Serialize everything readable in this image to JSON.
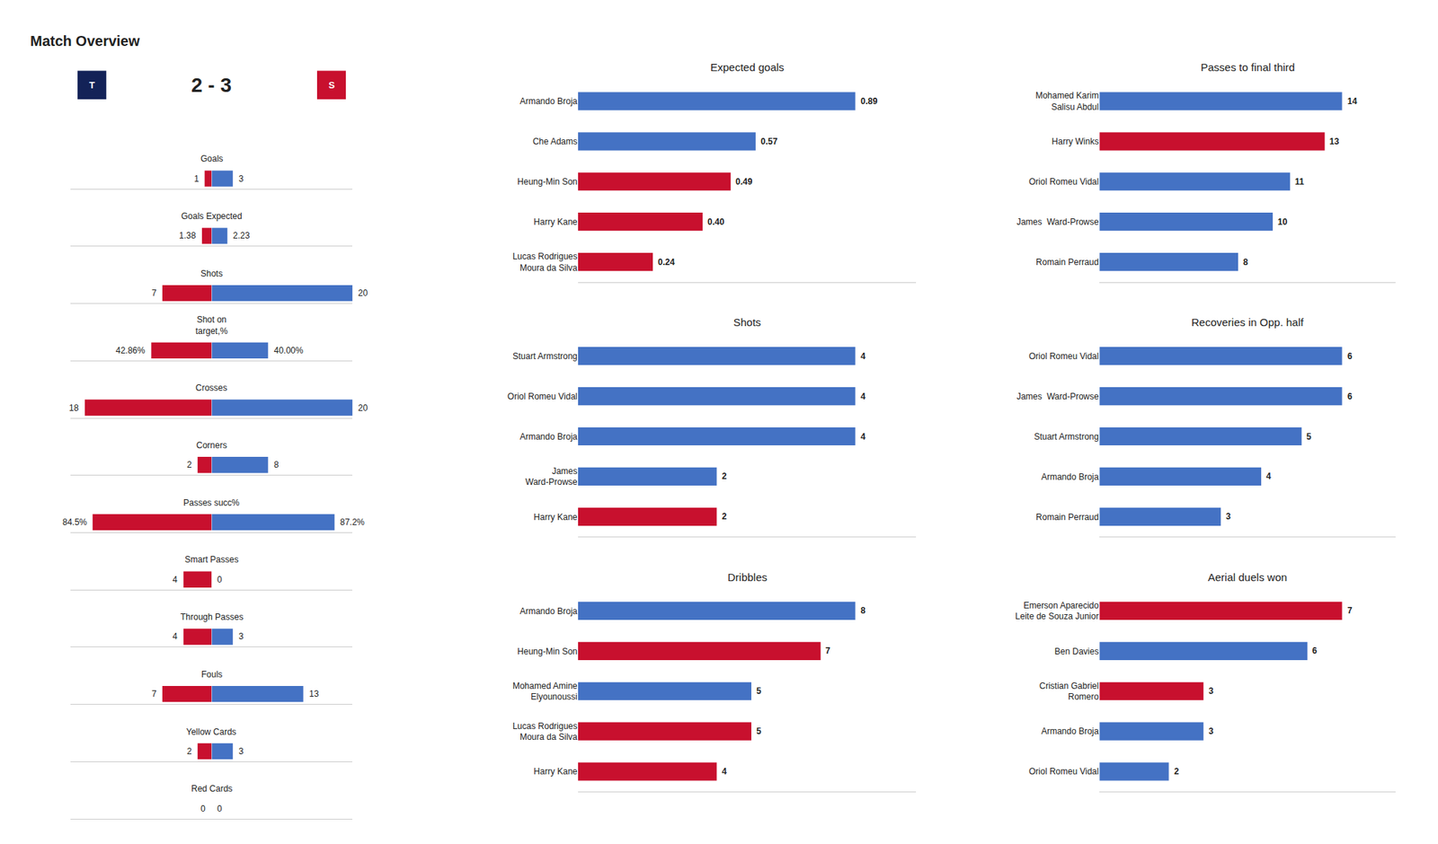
{
  "chart_data": [
    {
      "type": "bar",
      "orientation": "horizontal",
      "title": "Match Overview",
      "subtitle": "2 - 3",
      "annotations": [
        {
          "text": "T",
          "color": "#132257"
        },
        {
          "text": "S",
          "color": "#C8102E"
        }
      ],
      "categories": [
        "Goals",
        "Goals Expected",
        "Shots",
        "Shot on\ntarget,%",
        "Crosses",
        "Corners",
        "Passes succ%",
        "Smart Passes",
        "Through Passes",
        "Fouls",
        "Yellow Cards",
        "Red Cards"
      ],
      "scale": [
        20,
        20,
        20,
        100,
        20,
        20,
        100,
        20,
        20,
        20,
        20,
        20
      ],
      "series": [
        {
          "color": "#C8102E",
          "values": [
            1,
            1.38,
            7,
            42.86,
            18,
            2,
            84.5,
            4,
            4,
            7,
            2,
            0
          ],
          "value_labels": [
            "1",
            "1.38",
            "7",
            "42.86%",
            "18",
            "2",
            "84.5%",
            "4",
            "4",
            "7",
            "2",
            "0"
          ]
        },
        {
          "color": "#4472C4",
          "values": [
            3,
            2.23,
            20,
            40.0,
            20,
            8,
            87.2,
            0,
            3,
            13,
            3,
            0
          ],
          "value_labels": [
            "3",
            "2.23",
            "20",
            "40.00%",
            "20",
            "8",
            "87.2%",
            "0",
            "3",
            "13",
            "3",
            "0"
          ]
        }
      ],
      "data_labels": true,
      "tick_labels": "y",
      "grid": false
    },
    {
      "type": "bar",
      "orientation": "horizontal",
      "title": "Expected goals",
      "categories": [
        "Armando Broja",
        "Che Adams",
        "Heung-Min Son",
        "Harry Kane",
        "Lucas Rodrigues\nMoura da Silva"
      ],
      "values": [
        0.89,
        0.57,
        0.49,
        0.4,
        0.24
      ],
      "value_labels": [
        "0.89",
        "0.57",
        "0.49",
        "0.40",
        "0.24"
      ],
      "colors": [
        "#4472C4",
        "#4472C4",
        "#C8102E",
        "#C8102E",
        "#C8102E"
      ],
      "xlim": [
        0,
        1.0858
      ],
      "data_labels": true,
      "tick_labels": "y",
      "grid": false
    },
    {
      "type": "bar",
      "orientation": "horizontal",
      "title": "Shots",
      "categories": [
        "Stuart Armstrong",
        "Oriol Romeu Vidal",
        "Armando Broja",
        "James\nWard-Prowse",
        "Harry Kane"
      ],
      "values": [
        4,
        4,
        4,
        2,
        2
      ],
      "value_labels": [
        "4",
        "4",
        "4",
        "2",
        "2"
      ],
      "colors": [
        "#4472C4",
        "#4472C4",
        "#4472C4",
        "#4472C4",
        "#C8102E"
      ],
      "xlim": [
        0,
        4.88
      ],
      "data_labels": true,
      "tick_labels": "y",
      "grid": false
    },
    {
      "type": "bar",
      "orientation": "horizontal",
      "title": "Dribbles",
      "categories": [
        "Armando Broja",
        "Heung-Min Son",
        "Mohamed Amine\nElyounoussi",
        "Lucas Rodrigues\nMoura da Silva",
        "Harry Kane"
      ],
      "values": [
        8,
        7,
        5,
        5,
        4
      ],
      "value_labels": [
        "8",
        "7",
        "5",
        "5",
        "4"
      ],
      "colors": [
        "#4472C4",
        "#C8102E",
        "#4472C4",
        "#C8102E",
        "#C8102E"
      ],
      "xlim": [
        0,
        9.76
      ],
      "data_labels": true,
      "tick_labels": "y",
      "grid": false
    },
    {
      "type": "bar",
      "orientation": "horizontal",
      "title": "Passes to final third",
      "categories": [
        "Mohamed Karim\nSalisu Abdul",
        "Harry Winks",
        "Oriol Romeu Vidal",
        "James  Ward-Prowse",
        "Romain Perraud"
      ],
      "values": [
        14,
        13,
        11,
        10,
        8
      ],
      "value_labels": [
        "14",
        "13",
        "11",
        "10",
        "8"
      ],
      "colors": [
        "#4472C4",
        "#C8102E",
        "#4472C4",
        "#4472C4",
        "#4472C4"
      ],
      "xlim": [
        0,
        17.08
      ],
      "data_labels": true,
      "tick_labels": "y",
      "grid": false
    },
    {
      "type": "bar",
      "orientation": "horizontal",
      "title": "Recoveries in Opp. half",
      "categories": [
        "Oriol Romeu Vidal",
        "James  Ward-Prowse",
        "Stuart Armstrong",
        "Armando Broja",
        "Romain Perraud"
      ],
      "values": [
        6,
        6,
        5,
        4,
        3
      ],
      "value_labels": [
        "6",
        "6",
        "5",
        "4",
        "3"
      ],
      "colors": [
        "#4472C4",
        "#4472C4",
        "#4472C4",
        "#4472C4",
        "#4472C4"
      ],
      "xlim": [
        0,
        7.32
      ],
      "data_labels": true,
      "tick_labels": "y",
      "grid": false
    },
    {
      "type": "bar",
      "orientation": "horizontal",
      "title": "Aerial duels won",
      "categories": [
        "Emerson Aparecido\nLeite de Souza Junior",
        "Ben Davies",
        "Cristian Gabriel\nRomero",
        "Armando Broja",
        "Oriol Romeu Vidal"
      ],
      "values": [
        7,
        6,
        3,
        3,
        2
      ],
      "value_labels": [
        "7",
        "6",
        "3",
        "3",
        "2"
      ],
      "colors": [
        "#C8102E",
        "#4472C4",
        "#C8102E",
        "#4472C4",
        "#4472C4"
      ],
      "xlim": [
        0,
        8.54
      ],
      "data_labels": true,
      "tick_labels": "y",
      "grid": false
    }
  ]
}
